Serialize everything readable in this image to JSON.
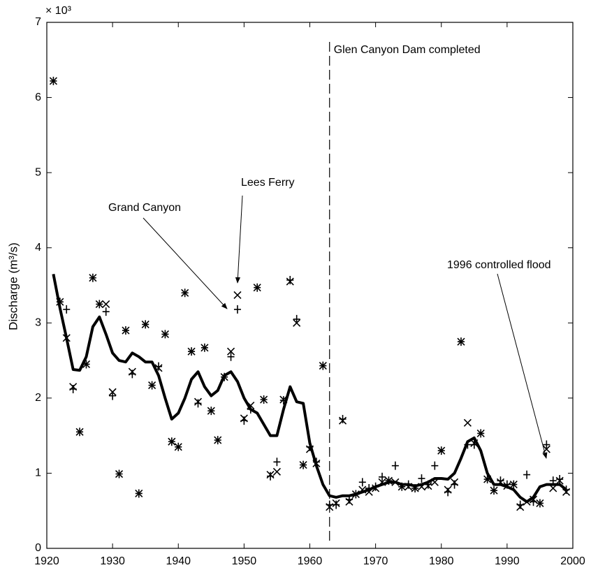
{
  "chart_data": {
    "type": "scatter",
    "multiplier": "× 10³",
    "ylabel": "Discharge (m³/s)",
    "xlim": [
      1920,
      2000
    ],
    "xticks": [
      1920,
      1930,
      1940,
      1950,
      1960,
      1970,
      1980,
      1990,
      2000
    ],
    "ylim": [
      0,
      7
    ],
    "yticks": [
      0,
      1,
      2,
      3,
      4,
      5,
      6,
      7
    ],
    "x": [
      1921,
      1922,
      1923,
      1924,
      1925,
      1926,
      1927,
      1928,
      1929,
      1930,
      1931,
      1932,
      1933,
      1934,
      1935,
      1936,
      1937,
      1938,
      1939,
      1940,
      1941,
      1942,
      1943,
      1944,
      1945,
      1946,
      1947,
      1948,
      1949,
      1950,
      1951,
      1952,
      1953,
      1954,
      1955,
      1956,
      1957,
      1958,
      1959,
      1960,
      1961,
      1962,
      1963,
      1964,
      1965,
      1966,
      1967,
      1968,
      1969,
      1970,
      1971,
      1972,
      1973,
      1974,
      1975,
      1976,
      1977,
      1978,
      1979,
      1980,
      1981,
      1982,
      1983,
      1984,
      1985,
      1986,
      1987,
      1988,
      1989,
      1990,
      1991,
      1992,
      1993,
      1994,
      1995,
      1996,
      1997,
      1998,
      1999
    ],
    "series": [
      {
        "marker": "plus",
        "color": "#000000",
        "values": [
          6.22,
          3.28,
          3.18,
          2.12,
          1.55,
          2.45,
          3.6,
          3.25,
          3.15,
          2.03,
          0.99,
          2.9,
          2.32,
          0.73,
          2.98,
          2.17,
          2.42,
          2.85,
          1.42,
          1.35,
          3.4,
          2.62,
          1.93,
          2.67,
          1.83,
          1.44,
          2.28,
          2.55,
          3.18,
          1.7,
          1.85,
          3.47,
          1.98,
          0.96,
          1.15,
          1.97,
          3.57,
          3.05,
          1.11,
          1.35,
          1.15,
          2.43,
          0.58,
          0.58,
          1.72,
          0.65,
          0.72,
          0.88,
          0.8,
          0.82,
          0.95,
          0.9,
          1.1,
          0.82,
          0.85,
          0.8,
          0.93,
          0.85,
          1.1,
          1.3,
          0.75,
          0.85,
          2.75,
          1.38,
          1.38,
          1.53,
          0.92,
          0.77,
          0.9,
          0.85,
          0.85,
          0.58,
          0.98,
          0.62,
          0.6,
          1.38,
          0.9,
          0.92,
          0.78
        ]
      },
      {
        "marker": "cross",
        "color": "#000000",
        "values": [
          6.22,
          3.28,
          2.8,
          2.15,
          1.55,
          2.45,
          3.6,
          3.25,
          3.25,
          2.08,
          0.99,
          2.9,
          2.35,
          0.73,
          2.98,
          2.17,
          2.4,
          2.85,
          1.42,
          1.35,
          3.4,
          2.62,
          1.95,
          2.67,
          1.83,
          1.44,
          2.28,
          2.62,
          3.37,
          1.73,
          1.9,
          3.47,
          1.98,
          0.98,
          1.02,
          1.98,
          3.55,
          3.0,
          1.11,
          1.32,
          1.13,
          2.43,
          0.55,
          0.6,
          1.7,
          0.62,
          0.72,
          0.78,
          0.75,
          0.8,
          0.88,
          0.9,
          0.88,
          0.82,
          0.82,
          0.8,
          0.82,
          0.83,
          0.88,
          1.3,
          0.78,
          0.88,
          2.75,
          1.67,
          1.4,
          1.53,
          0.92,
          0.77,
          0.88,
          0.83,
          0.85,
          0.55,
          0.62,
          0.65,
          0.6,
          1.32,
          0.8,
          0.9,
          0.75
        ]
      },
      {
        "marker": "line",
        "color": "#000000",
        "values": [
          3.65,
          3.2,
          2.8,
          2.38,
          2.37,
          2.55,
          2.95,
          3.08,
          2.85,
          2.6,
          2.5,
          2.48,
          2.6,
          2.55,
          2.48,
          2.48,
          2.3,
          2.0,
          1.72,
          1.8,
          2.0,
          2.25,
          2.35,
          2.15,
          2.03,
          2.1,
          2.3,
          2.35,
          2.22,
          2.0,
          1.85,
          1.8,
          1.65,
          1.5,
          1.5,
          1.85,
          2.15,
          1.95,
          1.93,
          1.4,
          1.1,
          0.85,
          0.7,
          0.68,
          0.7,
          0.7,
          0.72,
          0.75,
          0.78,
          0.82,
          0.85,
          0.88,
          0.88,
          0.85,
          0.85,
          0.83,
          0.85,
          0.88,
          0.93,
          0.93,
          0.92,
          1.0,
          1.2,
          1.42,
          1.47,
          1.3,
          1.0,
          0.85,
          0.85,
          0.82,
          0.78,
          0.68,
          0.62,
          0.68,
          0.82,
          0.85,
          0.85,
          0.85,
          0.78
        ]
      }
    ],
    "annotations": [
      {
        "text": "Glen Canyon Dam completed",
        "x": 1963
      },
      {
        "text": "Lees Ferry"
      },
      {
        "text": "Grand Canyon"
      },
      {
        "text": "1996 controlled flood"
      }
    ]
  }
}
